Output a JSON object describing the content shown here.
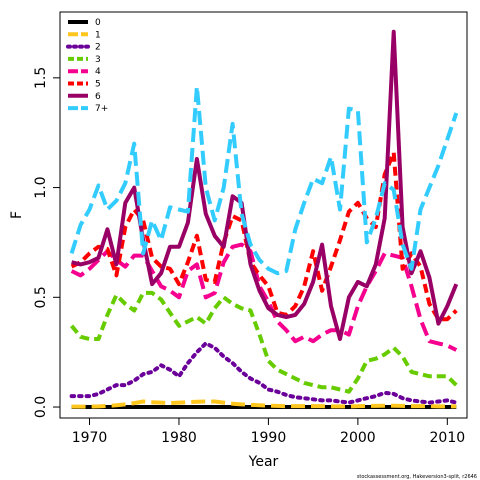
{
  "chart_data": {
    "type": "line",
    "title": "",
    "xlabel": "Year",
    "ylabel": "F",
    "xlim": [
      1966.7,
      2012.2
    ],
    "ylim": [
      -0.05,
      1.8
    ],
    "x_ticks": [
      1970,
      1980,
      1990,
      2000,
      2010
    ],
    "x_tick_labels": [
      "1970",
      "1980",
      "1990",
      "2000",
      "2010"
    ],
    "y_ticks": [
      0.0,
      0.5,
      1.0,
      1.5
    ],
    "y_tick_labels": [
      "0.0",
      "0.5",
      "1.0",
      "1.5"
    ],
    "legend_position": "top-left",
    "grid": false,
    "credit": "stockassessment.org, Hakeversion3-split, r2646",
    "x": [
      1968,
      1969,
      1970,
      1971,
      1972,
      1973,
      1974,
      1975,
      1976,
      1977,
      1978,
      1979,
      1980,
      1981,
      1982,
      1983,
      1984,
      1985,
      1986,
      1987,
      1988,
      1989,
      1990,
      1991,
      1992,
      1993,
      1994,
      1995,
      1996,
      1997,
      1998,
      1999,
      2000,
      2001,
      2002,
      2003,
      2004,
      2005,
      2006,
      2007,
      2008,
      2009,
      2010,
      2011
    ],
    "series": [
      {
        "name": "0",
        "color": "#000000",
        "dash": "solid",
        "values": [
          0.0,
          0.0,
          0.0,
          0.0,
          0.0,
          0.0,
          0.0,
          0.0,
          0.0,
          0.0,
          0.0,
          0.0,
          0.0,
          0.0,
          0.0,
          0.0,
          0.0,
          0.0,
          0.0,
          0.0,
          0.0,
          0.0,
          0.0,
          0.0,
          0.0,
          0.0,
          0.0,
          0.0,
          0.0,
          0.0,
          0.0,
          0.0,
          0.0,
          0.0,
          0.0,
          0.0,
          0.0,
          0.0,
          0.0,
          0.0,
          0.0,
          0.0,
          0.0,
          0.0
        ]
      },
      {
        "name": "1",
        "color": "#FFC61E",
        "dash": "long",
        "values": [
          0.002,
          0.002,
          0.002,
          0.003,
          0.005,
          0.008,
          0.012,
          0.018,
          0.025,
          0.022,
          0.02,
          0.018,
          0.02,
          0.022,
          0.024,
          0.025,
          0.025,
          0.02,
          0.015,
          0.012,
          0.01,
          0.008,
          0.006,
          0.005,
          0.004,
          0.004,
          0.004,
          0.004,
          0.004,
          0.003,
          0.003,
          0.003,
          0.004,
          0.005,
          0.005,
          0.006,
          0.006,
          0.005,
          0.004,
          0.004,
          0.004,
          0.003,
          0.003,
          0.003
        ]
      },
      {
        "name": "2",
        "color": "#6A0099",
        "dash": "dot",
        "values": [
          0.05,
          0.05,
          0.05,
          0.06,
          0.08,
          0.1,
          0.1,
          0.12,
          0.15,
          0.16,
          0.19,
          0.17,
          0.14,
          0.2,
          0.25,
          0.29,
          0.27,
          0.23,
          0.2,
          0.16,
          0.13,
          0.11,
          0.08,
          0.07,
          0.055,
          0.045,
          0.04,
          0.035,
          0.03,
          0.03,
          0.025,
          0.02,
          0.03,
          0.04,
          0.05,
          0.065,
          0.06,
          0.04,
          0.03,
          0.025,
          0.02,
          0.025,
          0.03,
          0.02
        ]
      },
      {
        "name": "3",
        "color": "#66CC00",
        "dash": "dash",
        "values": [
          0.37,
          0.32,
          0.31,
          0.31,
          0.42,
          0.51,
          0.47,
          0.44,
          0.52,
          0.52,
          0.49,
          0.43,
          0.37,
          0.39,
          0.41,
          0.38,
          0.45,
          0.5,
          0.47,
          0.45,
          0.44,
          0.33,
          0.21,
          0.17,
          0.15,
          0.13,
          0.11,
          0.1,
          0.09,
          0.09,
          0.08,
          0.07,
          0.13,
          0.21,
          0.22,
          0.24,
          0.27,
          0.23,
          0.16,
          0.15,
          0.14,
          0.14,
          0.14,
          0.1
        ]
      },
      {
        "name": "4",
        "color": "#F5008F",
        "dash": "long",
        "values": [
          0.62,
          0.6,
          0.63,
          0.67,
          0.71,
          0.67,
          0.64,
          0.69,
          0.69,
          0.62,
          0.55,
          0.53,
          0.5,
          0.62,
          0.65,
          0.5,
          0.52,
          0.66,
          0.73,
          0.74,
          0.71,
          0.55,
          0.48,
          0.39,
          0.35,
          0.3,
          0.32,
          0.3,
          0.33,
          0.35,
          0.35,
          0.33,
          0.46,
          0.55,
          0.62,
          0.7,
          0.69,
          0.68,
          0.55,
          0.4,
          0.3,
          0.29,
          0.28,
          0.26
        ]
      },
      {
        "name": "5",
        "color": "#FF0000",
        "dash": "dash",
        "values": [
          0.64,
          0.66,
          0.7,
          0.73,
          0.72,
          0.6,
          0.82,
          0.9,
          0.85,
          0.68,
          0.64,
          0.63,
          0.56,
          0.66,
          0.78,
          0.58,
          0.57,
          0.75,
          0.87,
          0.85,
          0.66,
          0.6,
          0.55,
          0.43,
          0.42,
          0.46,
          0.55,
          0.71,
          0.53,
          0.64,
          0.76,
          0.89,
          0.93,
          0.86,
          0.82,
          1.06,
          1.16,
          0.63,
          0.7,
          0.64,
          0.47,
          0.4,
          0.4,
          0.44
        ]
      },
      {
        "name": "6",
        "color": "#990066",
        "dash": "solid",
        "values": [
          0.66,
          0.65,
          0.66,
          0.68,
          0.81,
          0.65,
          0.93,
          1.0,
          0.76,
          0.56,
          0.61,
          0.73,
          0.73,
          0.84,
          1.13,
          0.88,
          0.78,
          0.73,
          0.96,
          0.93,
          0.65,
          0.53,
          0.45,
          0.42,
          0.41,
          0.42,
          0.47,
          0.57,
          0.74,
          0.46,
          0.31,
          0.5,
          0.57,
          0.55,
          0.65,
          0.86,
          1.71,
          0.82,
          0.61,
          0.71,
          0.59,
          0.38,
          0.46,
          0.56
        ]
      },
      {
        "name": "7+",
        "color": "#33CCFF",
        "dash": "long",
        "values": [
          0.7,
          0.83,
          0.9,
          1.01,
          0.9,
          0.94,
          1.02,
          1.2,
          0.7,
          0.85,
          0.76,
          0.91,
          0.9,
          0.89,
          1.46,
          1.0,
          0.85,
          1.0,
          1.29,
          0.88,
          0.74,
          0.67,
          0.63,
          0.61,
          0.62,
          0.81,
          0.93,
          1.04,
          1.02,
          1.14,
          0.9,
          1.36,
          1.35,
          0.75,
          0.86,
          1.02,
          0.99,
          0.74,
          0.63,
          0.9,
          1.0,
          1.1,
          1.22,
          1.34
        ]
      }
    ]
  }
}
